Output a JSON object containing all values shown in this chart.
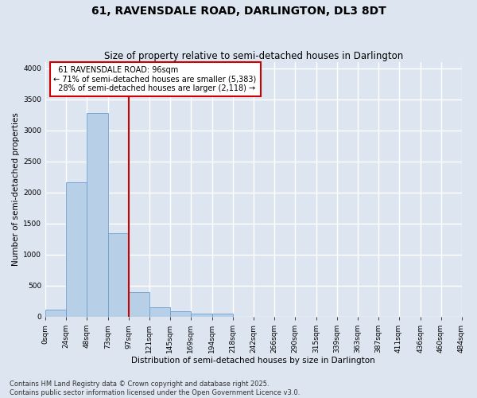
{
  "title": "61, RAVENSDALE ROAD, DARLINGTON, DL3 8DT",
  "subtitle": "Size of property relative to semi-detached houses in Darlington",
  "xlabel": "Distribution of semi-detached houses by size in Darlington",
  "ylabel": "Number of semi-detached properties",
  "property_label": "61 RAVENSDALE ROAD: 96sqm",
  "pct_smaller": 71,
  "count_smaller": 5383,
  "pct_larger": 28,
  "count_larger": 2118,
  "bin_edges": [
    0,
    24,
    48,
    73,
    97,
    121,
    145,
    169,
    194,
    218,
    242,
    266,
    290,
    315,
    339,
    363,
    387,
    411,
    436,
    460,
    484
  ],
  "bin_labels": [
    "0sqm",
    "24sqm",
    "48sqm",
    "73sqm",
    "97sqm",
    "121sqm",
    "145sqm",
    "169sqm",
    "194sqm",
    "218sqm",
    "242sqm",
    "266sqm",
    "290sqm",
    "315sqm",
    "339sqm",
    "363sqm",
    "387sqm",
    "411sqm",
    "436sqm",
    "460sqm",
    "484sqm"
  ],
  "bar_values": [
    110,
    2170,
    3280,
    1340,
    400,
    155,
    90,
    50,
    45,
    0,
    0,
    0,
    0,
    0,
    0,
    0,
    0,
    0,
    0,
    0
  ],
  "bar_color": "#b8cfe8",
  "bar_edge_color": "#6a9fd4",
  "vline_color": "#cc0000",
  "vline_x": 97,
  "ylim": [
    0,
    4100
  ],
  "yticks": [
    0,
    500,
    1000,
    1500,
    2000,
    2500,
    3000,
    3500,
    4000
  ],
  "bg_color": "#dde6f0",
  "grid_color": "#ffffff",
  "annotation_box_color": "#ffffff",
  "annotation_box_edge": "#cc0000",
  "footer_text": "Contains HM Land Registry data © Crown copyright and database right 2025.\nContains public sector information licensed under the Open Government Licence v3.0.",
  "title_fontsize": 10,
  "subtitle_fontsize": 8.5,
  "axis_label_fontsize": 7.5,
  "tick_fontsize": 6.5,
  "annotation_fontsize": 7,
  "footer_fontsize": 6
}
